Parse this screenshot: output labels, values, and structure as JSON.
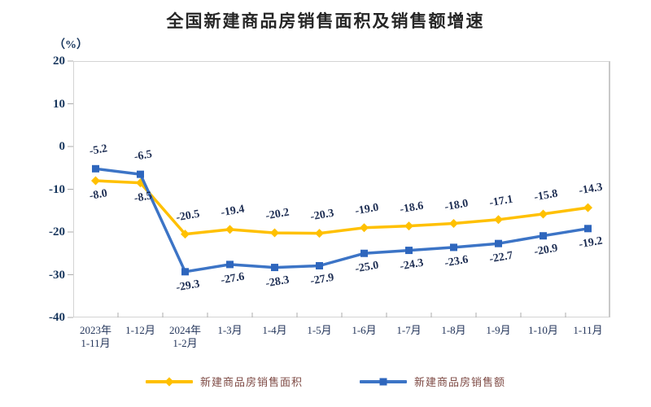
{
  "chart_data": {
    "type": "line",
    "title": "全国新建商品房销售面积及销售额增速",
    "unit_label": "（%）",
    "xlabel": "",
    "ylabel": "（%）",
    "ylim": [
      -40,
      20
    ],
    "y_ticks": [
      20,
      10,
      0,
      -10,
      -20,
      -30,
      -40
    ],
    "grid": false,
    "legend_position": "bottom",
    "categories": [
      "2023年\n1-11月",
      "1-12月",
      "2024年\n1-2月",
      "1-3月",
      "1-4月",
      "1-5月",
      "1-6月",
      "1-7月",
      "1-8月",
      "1-9月",
      "1-10月",
      "1-11月"
    ],
    "series": [
      {
        "name": "新建商品房销售面积",
        "marker": "diamond",
        "color": "#FFC000",
        "marker_color": "#FFC000",
        "values": [
          -8.0,
          -8.5,
          -20.5,
          -19.4,
          -20.2,
          -20.3,
          -19.0,
          -18.6,
          -18.0,
          -17.1,
          -15.8,
          -14.3
        ]
      },
      {
        "name": "新建商品房销售额",
        "marker": "square",
        "color": "#3C74C6",
        "marker_color": "#2E66BD",
        "values": [
          -5.2,
          -6.5,
          -29.3,
          -27.6,
          -28.3,
          -27.9,
          -25.0,
          -24.3,
          -23.6,
          -22.7,
          -20.9,
          -19.2
        ]
      }
    ]
  },
  "style": {
    "axis_label_color": "#17365D",
    "data_label_color": "#1F2F54",
    "legend_text_color": "#7E4A44",
    "border_color": "#D4D4D4",
    "tick_color": "#ABABAB",
    "background": "#FFFFFF"
  }
}
